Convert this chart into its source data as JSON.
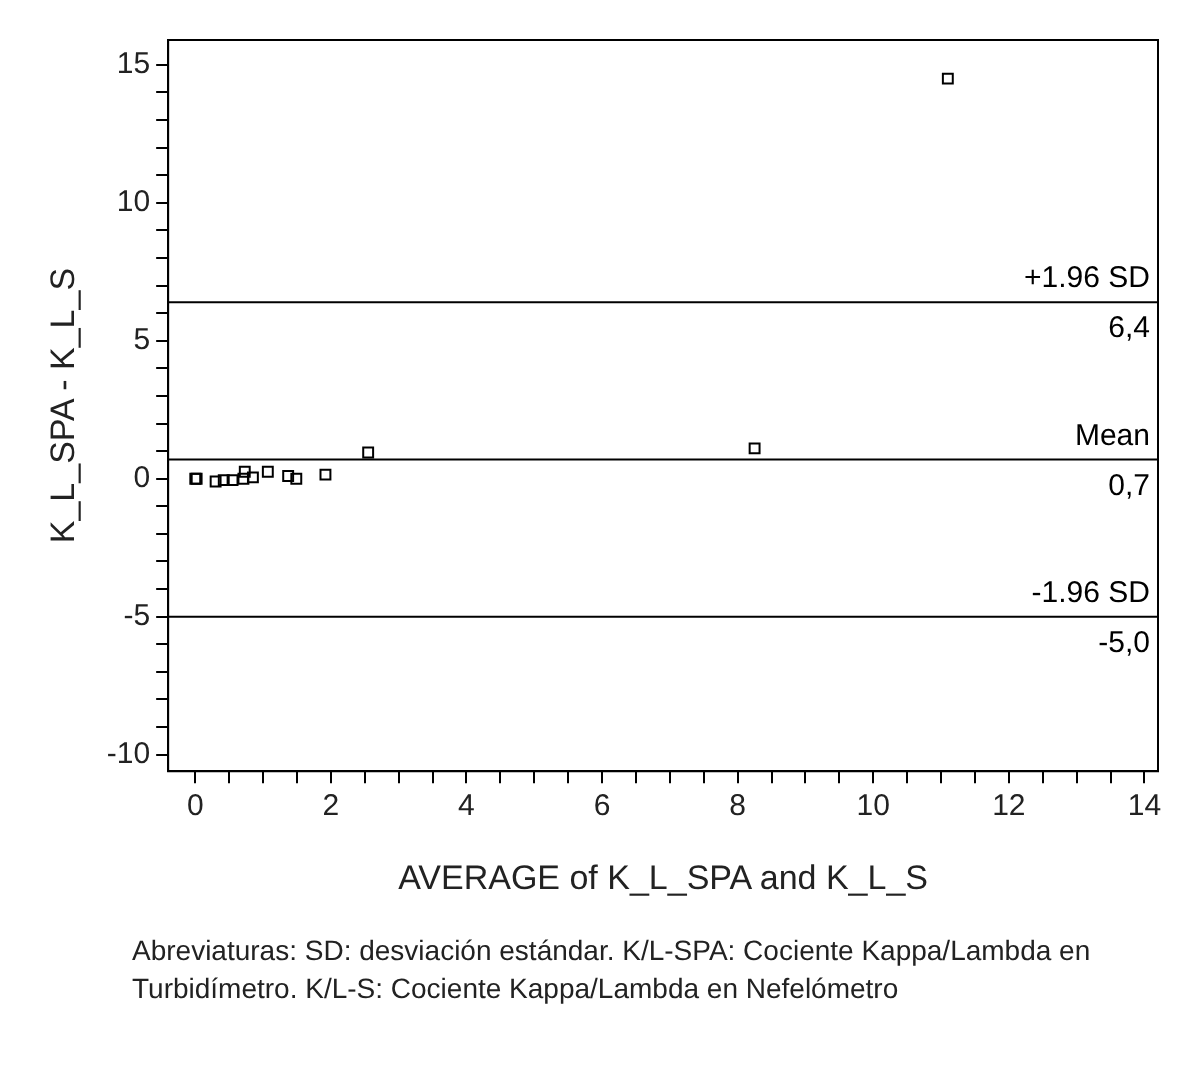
{
  "chart_data": {
    "type": "scatter",
    "xlabel": "AVERAGE of K_L_SPA and K_L_S",
    "ylabel": "K_L_SPA - K_L_S",
    "x": [
      0.0,
      0.02,
      0.3,
      0.42,
      0.55,
      0.71,
      0.73,
      0.85,
      1.07,
      1.37,
      1.49,
      1.92,
      2.55,
      8.25,
      11.1
    ],
    "values": [
      0.0,
      0.0,
      -0.1,
      -0.05,
      -0.05,
      0.0,
      0.25,
      0.05,
      0.25,
      0.1,
      0.0,
      0.15,
      0.95,
      1.1,
      14.5
    ],
    "color": "#000000",
    "marker": "square",
    "grid": false,
    "xlim": [
      -0.4,
      14.2
    ],
    "ylim": [
      -10.6,
      15.9
    ],
    "xticks": [
      0,
      {
        "value": 0.5,
        "label": null
      },
      {
        "value": 1,
        "label": null
      },
      {
        "value": 1.5,
        "label": null
      },
      2,
      {
        "value": 2.5,
        "label": null
      },
      {
        "value": 3,
        "label": null
      },
      {
        "value": 3.5,
        "label": null
      },
      4,
      {
        "value": 4.5,
        "label": null
      },
      {
        "value": 5,
        "label": null
      },
      {
        "value": 5.5,
        "label": null
      },
      6,
      {
        "value": 6.5,
        "label": null
      },
      {
        "value": 7,
        "label": null
      },
      {
        "value": 7.5,
        "label": null
      },
      8,
      {
        "value": 8.5,
        "label": null
      },
      {
        "value": 9,
        "label": null
      },
      {
        "value": 9.5,
        "label": null
      },
      10,
      {
        "value": 10.5,
        "label": null
      },
      {
        "value": 11,
        "label": null
      },
      {
        "value": 11.5,
        "label": null
      },
      12,
      {
        "value": 12.5,
        "label": null
      },
      {
        "value": 13,
        "label": null
      },
      {
        "value": 13.5,
        "label": null
      },
      14
    ],
    "yticks": [
      -10,
      {
        "value": -9,
        "label": null
      },
      {
        "value": -8,
        "label": null
      },
      {
        "value": -7,
        "label": null
      },
      {
        "value": -6,
        "label": null
      },
      -5,
      {
        "value": -4,
        "label": null
      },
      {
        "value": -3,
        "label": null
      },
      {
        "value": -2,
        "label": null
      },
      {
        "value": -1,
        "label": null
      },
      0,
      {
        "value": 1,
        "label": null
      },
      {
        "value": 2,
        "label": null
      },
      {
        "value": 3,
        "label": null
      },
      {
        "value": 4,
        "label": null
      },
      5,
      {
        "value": 6,
        "label": null
      },
      {
        "value": 7,
        "label": null
      },
      {
        "value": 8,
        "label": null
      },
      {
        "value": 9,
        "label": null
      },
      10,
      {
        "value": 11,
        "label": null
      },
      {
        "value": 12,
        "label": null
      },
      {
        "value": 13,
        "label": null
      },
      {
        "value": 14,
        "label": null
      },
      15
    ],
    "ref_lines": [
      {
        "axis": "y",
        "value": 6.4,
        "label": "+1.96 SD",
        "color": "#000000"
      },
      {
        "axis": "y",
        "value": 0.7,
        "label": "Mean",
        "color": "#000000"
      },
      {
        "axis": "y",
        "value": -5.0,
        "label": "-1.96 SD",
        "color": "#000000"
      }
    ],
    "annotations": [
      {
        "text": "6,4",
        "y": 6.4
      },
      {
        "text": "0,7",
        "y": 0.7
      },
      {
        "text": "-5,0",
        "y": -5.0
      },
      "Abreviaturas: SD: desviación estándar. K/L-SPA: Cociente Kappa/Lambda en Turbidímetro. K/L-S: Cociente Kappa/Lambda en Nefelómetro"
    ]
  }
}
